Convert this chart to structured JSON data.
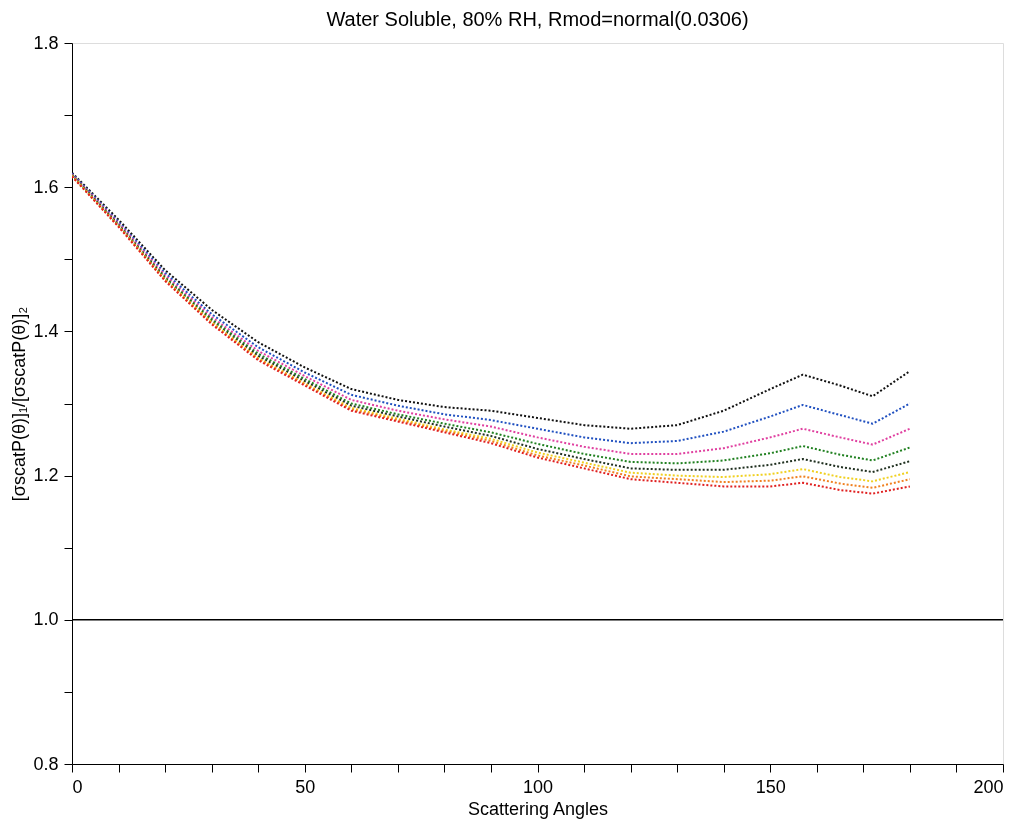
{
  "chart_data": {
    "type": "line",
    "title": "Water Soluble, 80% RH, Rmod=normal(0.0306)",
    "xlabel": "Scattering Angles",
    "ylabel": "[σscatP(θ)]₁/[σscatP(θ)]₂",
    "x": [
      0,
      10,
      20,
      30,
      40,
      50,
      60,
      70,
      80,
      90,
      100,
      110,
      120,
      130,
      140,
      150,
      157,
      165,
      172,
      180
    ],
    "series": [
      {
        "color": "#111111",
        "values": [
          1.62,
          1.555,
          1.485,
          1.43,
          1.385,
          1.35,
          1.32,
          1.305,
          1.295,
          1.29,
          1.28,
          1.27,
          1.265,
          1.27,
          1.29,
          1.32,
          1.34,
          1.325,
          1.31,
          1.345
        ]
      },
      {
        "color": "#2050c0",
        "values": [
          1.619,
          1.552,
          1.481,
          1.424,
          1.378,
          1.343,
          1.312,
          1.297,
          1.285,
          1.277,
          1.265,
          1.253,
          1.245,
          1.248,
          1.261,
          1.282,
          1.298,
          1.284,
          1.272,
          1.3
        ]
      },
      {
        "color": "#e040a0",
        "values": [
          1.618,
          1.55,
          1.478,
          1.42,
          1.373,
          1.338,
          1.305,
          1.29,
          1.278,
          1.268,
          1.253,
          1.24,
          1.23,
          1.23,
          1.238,
          1.253,
          1.265,
          1.253,
          1.243,
          1.265
        ]
      },
      {
        "color": "#208020",
        "values": [
          1.617,
          1.548,
          1.475,
          1.417,
          1.369,
          1.334,
          1.3,
          1.285,
          1.272,
          1.26,
          1.244,
          1.23,
          1.219,
          1.217,
          1.221,
          1.231,
          1.241,
          1.229,
          1.221,
          1.239
        ]
      },
      {
        "color": "#203020",
        "values": [
          1.616,
          1.547,
          1.473,
          1.414,
          1.366,
          1.331,
          1.297,
          1.282,
          1.268,
          1.255,
          1.237,
          1.223,
          1.21,
          1.208,
          1.208,
          1.215,
          1.223,
          1.212,
          1.205,
          1.22
        ]
      },
      {
        "color": "#f0d020",
        "values": [
          1.616,
          1.546,
          1.472,
          1.413,
          1.363,
          1.328,
          1.294,
          1.279,
          1.264,
          1.251,
          1.232,
          1.218,
          1.204,
          1.2,
          1.198,
          1.202,
          1.209,
          1.198,
          1.192,
          1.205
        ]
      },
      {
        "color": "#f08020",
        "values": [
          1.615,
          1.546,
          1.471,
          1.411,
          1.362,
          1.327,
          1.292,
          1.277,
          1.262,
          1.248,
          1.228,
          1.214,
          1.199,
          1.195,
          1.191,
          1.193,
          1.199,
          1.189,
          1.183,
          1.195
        ]
      },
      {
        "color": "#e02020",
        "values": [
          1.615,
          1.545,
          1.47,
          1.41,
          1.36,
          1.325,
          1.29,
          1.275,
          1.26,
          1.245,
          1.225,
          1.21,
          1.195,
          1.19,
          1.185,
          1.185,
          1.19,
          1.18,
          1.175,
          1.185
        ]
      }
    ],
    "xlim": [
      0,
      200
    ],
    "xticks": [
      0,
      {
        "value": 10,
        "label": null
      },
      {
        "value": 20,
        "label": null
      },
      {
        "value": 30,
        "label": null
      },
      {
        "value": 40,
        "label": null
      },
      50,
      {
        "value": 60,
        "label": null
      },
      {
        "value": 70,
        "label": null
      },
      {
        "value": 80,
        "label": null
      },
      {
        "value": 90,
        "label": null
      },
      100,
      {
        "value": 110,
        "label": null
      },
      {
        "value": 120,
        "label": null
      },
      {
        "value": 130,
        "label": null
      },
      {
        "value": 140,
        "label": null
      },
      150,
      {
        "value": 160,
        "label": null
      },
      {
        "value": 170,
        "label": null
      },
      {
        "value": 180,
        "label": null
      },
      {
        "value": 190,
        "label": null
      },
      200
    ],
    "ylim": [
      0.8,
      1.8
    ],
    "yticks": [
      {
        "value": 0.8,
        "label": "0.8"
      },
      {
        "value": 0.9,
        "label": null
      },
      {
        "value": 1.0,
        "label": "1.0"
      },
      {
        "value": 1.1,
        "label": null
      },
      1.2,
      {
        "value": 1.3,
        "label": null
      },
      1.4,
      {
        "value": 1.5,
        "label": null
      },
      1.6,
      {
        "value": 1.7,
        "label": null
      },
      1.8
    ],
    "ref_lines": [
      {
        "axis": "y",
        "value": 1.0,
        "color": "#000000",
        "line_style": "solid"
      }
    ],
    "line_style": "dotted",
    "marker": "none",
    "grid": false,
    "legend": false
  }
}
